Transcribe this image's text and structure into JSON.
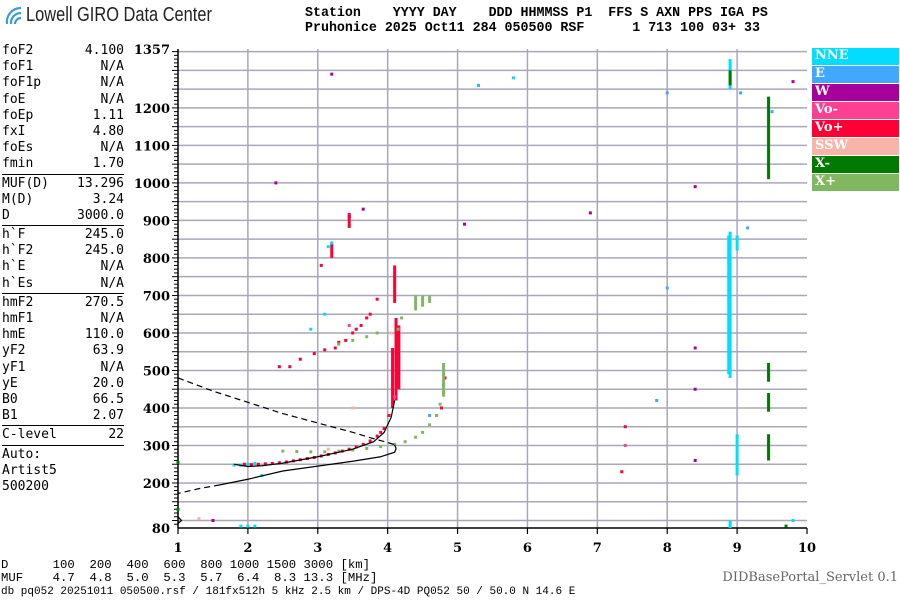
{
  "logo": {
    "text": "Lowell GIRO Data Center",
    "icon": "wifi-arcs-icon"
  },
  "header": {
    "line1": "Station    YYYY DAY    DDD HHMMSS P1  FFS S AXN PPS IGA PS",
    "line2": "Pruhonice 2025 Oct11 284 050500 RSF      1 713 100 03+ 33"
  },
  "params": {
    "group1": [
      [
        "foF2",
        "4.100"
      ],
      [
        "foF1",
        "N/A"
      ],
      [
        "foF1p",
        "N/A"
      ],
      [
        "foE",
        "N/A"
      ],
      [
        "foEp",
        "1.11"
      ],
      [
        "fxI",
        "4.80"
      ],
      [
        "foEs",
        "N/A"
      ],
      [
        "fmin",
        "1.70"
      ]
    ],
    "group2": [
      [
        "MUF(D)",
        "13.296"
      ],
      [
        "M(D)",
        "3.24"
      ],
      [
        "D",
        "3000.0"
      ]
    ],
    "group3": [
      [
        "h`F",
        "245.0"
      ],
      [
        "h`F2",
        "245.0"
      ],
      [
        "h`E",
        "N/A"
      ],
      [
        "h`Es",
        "N/A"
      ]
    ],
    "group4": [
      [
        "hmF2",
        "270.5"
      ],
      [
        "hmF1",
        "N/A"
      ],
      [
        "hmE",
        "110.0"
      ],
      [
        "yF2",
        "63.9"
      ],
      [
        "yF1",
        "N/A"
      ],
      [
        "yE",
        "20.0"
      ],
      [
        "B0",
        "66.5"
      ],
      [
        "B1",
        "2.07"
      ]
    ],
    "group5": [
      [
        "C-level",
        "22"
      ]
    ],
    "auto": [
      "Auto:",
      "Artist5",
      "500200"
    ]
  },
  "legend": [
    {
      "label": "NNE",
      "color": "#00ddff"
    },
    {
      "label": "E",
      "color": "#40a8ff"
    },
    {
      "label": "W",
      "color": "#a8009a"
    },
    {
      "label": "Vo-",
      "color": "#ff3f90"
    },
    {
      "label": "Vo+",
      "color": "#ff0035"
    },
    {
      "label": "SSW",
      "color": "#f8b4a8"
    },
    {
      "label": "X-",
      "color": "#007a00"
    },
    {
      "label": "X+",
      "color": "#80b860"
    }
  ],
  "bottom": {
    "d_row": "D      100  200  400  600  800 1000 1500 3000 [km]",
    "muf_row": "MUF    4.7  4.8  5.0  5.3  5.7  6.4  8.3 13.3 [MHz]",
    "db_row": "db pq052 20251011 050500.rsf / 181fx512h 5 kHz 2.5 km / DPS-4D PQ052 50 / 50.0 N 14.6 E",
    "servlet": "DIDBasePortal_Servlet 0.1"
  },
  "chart_data": {
    "type": "scatter",
    "xlabel": "",
    "ylabel": "",
    "xlim": [
      1,
      10
    ],
    "ylim": [
      80,
      1357
    ],
    "x_ticks": [
      "1",
      "2",
      "3",
      "4",
      "5",
      "6",
      "7",
      "8",
      "9",
      "10"
    ],
    "y_ticks": [
      "1357",
      "1200",
      "1100",
      "1000",
      "900",
      "800",
      "700",
      "600",
      "500",
      "400",
      "300",
      "200",
      "80"
    ],
    "y_tick_values": [
      1357,
      1200,
      1100,
      1000,
      900,
      800,
      700,
      600,
      500,
      400,
      300,
      200,
      80
    ],
    "grid": true,
    "legend_placement": "right",
    "series": [
      {
        "name": "Vo+",
        "color": "#ff0035",
        "points": [
          [
            1.95,
            250
          ],
          [
            2.05,
            249
          ],
          [
            2.15,
            250
          ],
          [
            2.25,
            251
          ],
          [
            2.35,
            252
          ],
          [
            2.45,
            254
          ],
          [
            2.55,
            256
          ],
          [
            2.65,
            259
          ],
          [
            2.75,
            262
          ],
          [
            2.85,
            265
          ],
          [
            2.95,
            268
          ],
          [
            3.05,
            272
          ],
          [
            3.15,
            276
          ],
          [
            3.25,
            280
          ],
          [
            3.35,
            285
          ],
          [
            3.45,
            290
          ],
          [
            3.55,
            296
          ],
          [
            3.65,
            303
          ],
          [
            3.75,
            312
          ],
          [
            3.85,
            325
          ],
          [
            3.9,
            335
          ],
          [
            3.95,
            345
          ],
          [
            4.02,
            380
          ],
          [
            4.8,
            440
          ],
          [
            4.8,
            460
          ],
          [
            4.82,
            480
          ],
          [
            4.77,
            400
          ],
          [
            3.85,
            690
          ],
          [
            3.75,
            650
          ],
          [
            3.62,
            620
          ],
          [
            3.5,
            600
          ],
          [
            3.4,
            580
          ],
          [
            3.25,
            560
          ],
          [
            3.1,
            555
          ],
          [
            2.95,
            545
          ],
          [
            2.75,
            530
          ],
          [
            3.45,
            910
          ],
          [
            3.05,
            780
          ],
          [
            2.6,
            510
          ],
          [
            2.45,
            510
          ],
          [
            7.4,
            350
          ],
          [
            7.35,
            230
          ],
          [
            3.7,
            640
          ],
          [
            3.55,
            610
          ],
          [
            3.3,
            575
          ]
        ],
        "streaks": [
          [
            4.07,
            400,
            560
          ],
          [
            4.12,
            420,
            640
          ],
          [
            4.16,
            450,
            620
          ],
          [
            4.1,
            680,
            780
          ],
          [
            3.45,
            880,
            920
          ],
          [
            3.2,
            800,
            840
          ]
        ]
      },
      {
        "name": "X+",
        "color": "#80b860",
        "points": [
          [
            2.5,
            285
          ],
          [
            2.7,
            284
          ],
          [
            2.9,
            283
          ],
          [
            3.1,
            283
          ],
          [
            3.3,
            285
          ],
          [
            3.5,
            288
          ],
          [
            3.7,
            292
          ],
          [
            3.9,
            297
          ],
          [
            4.1,
            303
          ],
          [
            4.25,
            310
          ],
          [
            4.4,
            322
          ],
          [
            4.5,
            335
          ],
          [
            4.6,
            355
          ],
          [
            4.7,
            380
          ],
          [
            4.75,
            410
          ],
          [
            3.3,
            570
          ],
          [
            3.5,
            580
          ],
          [
            3.7,
            590
          ],
          [
            3.85,
            600
          ],
          [
            4.2,
            640
          ],
          [
            4.15,
            610
          ]
        ],
        "streaks": [
          [
            4.8,
            430,
            520
          ],
          [
            4.4,
            660,
            700
          ],
          [
            4.5,
            670,
            700
          ],
          [
            4.6,
            680,
            700
          ]
        ]
      },
      {
        "name": "NNE",
        "color": "#00ddff",
        "points": [
          [
            1.8,
            248
          ],
          [
            1.9,
            247
          ],
          [
            2.0,
            250
          ],
          [
            2.1,
            252
          ],
          [
            5.8,
            1280
          ],
          [
            1.9,
            85
          ],
          [
            2.0,
            85
          ],
          [
            2.1,
            85
          ],
          [
            3.15,
            830
          ],
          [
            3.2,
            840
          ],
          [
            9.8,
            100
          ],
          [
            3.1,
            650
          ],
          [
            2.9,
            610
          ],
          [
            2.2,
            220
          ]
        ],
        "streaks": [
          [
            8.9,
            480,
            870
          ],
          [
            8.88,
            490,
            860
          ],
          [
            9.0,
            220,
            330
          ],
          [
            9.0,
            820,
            860
          ],
          [
            8.9,
            1250,
            1330
          ],
          [
            8.9,
            80,
            100
          ]
        ]
      },
      {
        "name": "X-",
        "color": "#007a00",
        "points": [
          [
            9.7,
            85
          ],
          [
            1.0,
            255
          ],
          [
            1.0,
            130
          ]
        ],
        "streaks": [
          [
            9.45,
            1010,
            1230
          ],
          [
            9.45,
            260,
            330
          ],
          [
            9.45,
            390,
            440
          ],
          [
            8.9,
            1260,
            1300
          ],
          [
            9.45,
            470,
            520
          ]
        ]
      },
      {
        "name": "W",
        "color": "#a8009a",
        "points": [
          [
            2.4,
            1000
          ],
          [
            8.4,
            990
          ],
          [
            8.4,
            560
          ],
          [
            8.4,
            450
          ],
          [
            8.4,
            260
          ],
          [
            9.8,
            1270
          ],
          [
            3.2,
            1290
          ],
          [
            1.5,
            100
          ],
          [
            5.1,
            890
          ],
          [
            6.9,
            920
          ],
          [
            3.65,
            930
          ]
        ]
      },
      {
        "name": "E",
        "color": "#40a8ff",
        "points": [
          [
            8.0,
            1240
          ],
          [
            8.0,
            720
          ],
          [
            7.85,
            420
          ],
          [
            9.15,
            880
          ],
          [
            4.6,
            380
          ],
          [
            5.3,
            1260
          ],
          [
            9.05,
            1240
          ],
          [
            9.5,
            1190
          ]
        ]
      },
      {
        "name": "SSW",
        "color": "#f8b4a8",
        "points": [
          [
            3.15,
            290
          ],
          [
            1.3,
            105
          ],
          [
            3.5,
            400
          ],
          [
            4.05,
            600
          ]
        ]
      },
      {
        "name": "Vo-",
        "color": "#ff3f90",
        "points": [
          [
            3.45,
            620
          ],
          [
            4.1,
            430
          ],
          [
            7.4,
            300
          ]
        ]
      }
    ],
    "curves": [
      {
        "style": "dashed",
        "points": [
          [
            1.0,
            480
          ],
          [
            1.5,
            445
          ],
          [
            2.0,
            415
          ],
          [
            2.5,
            385
          ],
          [
            3.0,
            360
          ],
          [
            3.5,
            335
          ],
          [
            3.8,
            318
          ],
          [
            4.0,
            308
          ],
          [
            4.1,
            302
          ]
        ]
      },
      {
        "style": "solid",
        "points": [
          [
            4.1,
            302
          ],
          [
            4.12,
            292
          ],
          [
            4.1,
            282
          ],
          [
            3.9,
            270
          ],
          [
            3.5,
            258
          ],
          [
            3.0,
            245
          ],
          [
            2.5,
            232
          ],
          [
            2.0,
            210
          ],
          [
            1.6,
            195
          ]
        ]
      },
      {
        "style": "dashed",
        "points": [
          [
            1.6,
            195
          ],
          [
            1.3,
            185
          ],
          [
            1.0,
            172
          ]
        ]
      },
      {
        "style": "solid",
        "points": [
          [
            1.8,
            250
          ],
          [
            2.0,
            244
          ],
          [
            2.2,
            246
          ],
          [
            2.5,
            253
          ],
          [
            3.0,
            270
          ],
          [
            3.5,
            290
          ],
          [
            3.8,
            310
          ],
          [
            3.95,
            335
          ],
          [
            4.05,
            375
          ],
          [
            4.1,
            420
          ]
        ]
      },
      {
        "style": "solid",
        "points": [
          [
            1.0,
            110
          ],
          [
            1.05,
            100
          ],
          [
            1.0,
            92
          ]
        ]
      }
    ]
  }
}
